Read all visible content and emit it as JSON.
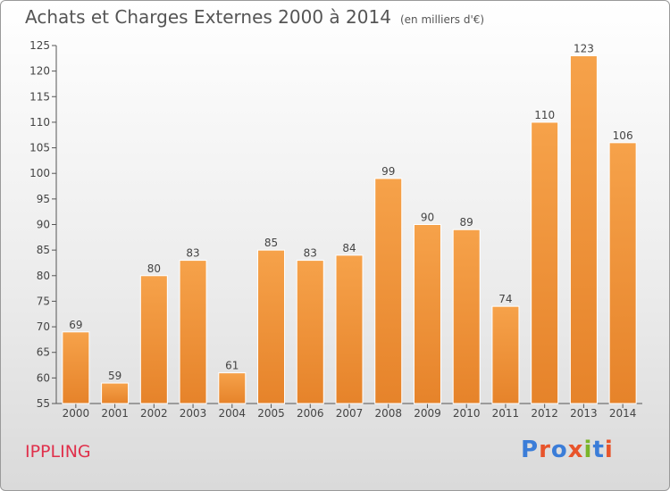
{
  "header": {
    "title": "Achats et Charges Externes 2000 à 2014",
    "unit": "(en milliers d'€)"
  },
  "place": "IPPLING",
  "logo": {
    "text": "Proxiti",
    "letter_colors": [
      "#3b7dd8",
      "#e8542b",
      "#3b7dd8",
      "#e8542b",
      "#7ab52a",
      "#3b7dd8",
      "#e8542b"
    ]
  },
  "colors": {
    "bar_light": "#f6a24a",
    "bar_dark": "#e6832a",
    "axis": "#555555",
    "place": "#e0304b"
  },
  "chart_data": {
    "type": "bar",
    "title": "Achats et Charges Externes 2000 à 2014",
    "categories": [
      "2000",
      "2001",
      "2002",
      "2003",
      "2004",
      "2005",
      "2006",
      "2007",
      "2008",
      "2009",
      "2010",
      "2011",
      "2012",
      "2013",
      "2014"
    ],
    "values": [
      69,
      59,
      80,
      83,
      61,
      85,
      83,
      84,
      99,
      90,
      89,
      74,
      110,
      123,
      106
    ],
    "ylim": [
      55,
      125
    ],
    "yticks": [
      55,
      60,
      65,
      70,
      75,
      80,
      85,
      90,
      95,
      100,
      105,
      110,
      115,
      120,
      125
    ],
    "grid": false,
    "legend": "none",
    "data_labels": true
  }
}
